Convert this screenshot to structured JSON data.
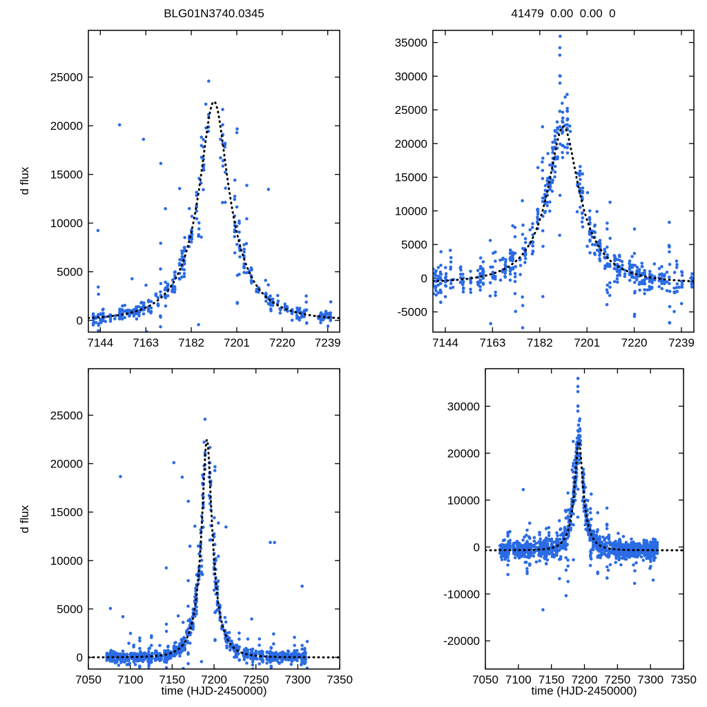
{
  "figure": {
    "background": "#ffffff"
  },
  "chart_data": {
    "type": "scatter",
    "point_color": "#2b6be4",
    "curve_color": "#000000",
    "curve_style": "dotted",
    "panels": [
      {
        "position": "top-left",
        "title": "BLG01N3740.0345",
        "xlabel": "",
        "ylabel": "d flux",
        "series": "left",
        "xlim": [
          7139,
          7244
        ],
        "ylim": [
          -1200,
          29800
        ],
        "xticks": [
          7144,
          7163,
          7182,
          7201,
          7220,
          7239
        ],
        "yticks": [
          0,
          5000,
          10000,
          15000,
          20000,
          25000
        ],
        "legend": "none",
        "grid": false
      },
      {
        "position": "top-right",
        "title": "41479  0.00  0.00  0",
        "xlabel": "",
        "ylabel": "",
        "series": "right",
        "xlim": [
          7139,
          7244
        ],
        "ylim": [
          -8000,
          36800
        ],
        "xticks": [
          7144,
          7163,
          7182,
          7201,
          7220,
          7239
        ],
        "yticks": [
          -5000,
          0,
          5000,
          10000,
          15000,
          20000,
          25000,
          30000,
          35000
        ],
        "legend": "none",
        "grid": false
      },
      {
        "position": "bottom-left",
        "title": "",
        "xlabel": "time (HJD-2450000)",
        "ylabel": "d flux",
        "series": "left",
        "xlim": [
          7050,
          7350
        ],
        "ylim": [
          -1200,
          29800
        ],
        "xticks": [
          7050,
          7100,
          7150,
          7200,
          7250,
          7300,
          7350
        ],
        "yticks": [
          0,
          5000,
          10000,
          15000,
          20000,
          25000
        ],
        "legend": "none",
        "grid": false
      },
      {
        "position": "bottom-right",
        "title": "",
        "xlabel": "time (HJD-2450000)",
        "ylabel": "",
        "series": "right",
        "xlim": [
          7050,
          7350
        ],
        "ylim": [
          -26000,
          38000
        ],
        "xticks": [
          7050,
          7100,
          7150,
          7200,
          7250,
          7300,
          7350
        ],
        "yticks": [
          -20000,
          -10000,
          0,
          10000,
          20000,
          30000
        ],
        "legend": "none",
        "grid": false
      }
    ],
    "models": {
      "left": {
        "type": "paczynski_point_lens",
        "t0": 7191.5,
        "tE": 20,
        "u0": 0.3,
        "fs": 9200,
        "baseline": 0,
        "peak_dflux": 22500
      },
      "right": {
        "type": "paczynski_point_lens",
        "t0": 7191.5,
        "tE": 20,
        "u0": 0.3,
        "fs": 9500,
        "baseline": -700,
        "peak_dflux": 22500
      }
    },
    "sampling": {
      "left": {
        "seed": 7,
        "t_start": 7070,
        "t_end": 7312,
        "skip_prob": 0.28,
        "obs_min": 2,
        "obs_max": 12,
        "jitter_days": 0.3,
        "sigma_base": 260,
        "sigma_frac": 0.1,
        "bad_night_prob": 0.15,
        "bad_night_scale": 5,
        "outlier_prob": 0.03,
        "outlier_scale": 9000,
        "outlier_sign": "positive"
      },
      "right": {
        "seed": 23,
        "t_start": 7070,
        "t_end": 7312,
        "skip_prob": 0.25,
        "obs_min": 2,
        "obs_max": 14,
        "jitter_days": 0.3,
        "sigma_base": 900,
        "sigma_frac": 0.08,
        "bad_night_prob": 0.18,
        "bad_night_scale": 3.5,
        "outlier_prob": 0.02,
        "outlier_scale": 6000,
        "outlier_sign": "both"
      }
    }
  }
}
